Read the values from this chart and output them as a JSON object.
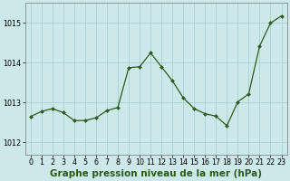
{
  "x": [
    0,
    1,
    2,
    3,
    4,
    5,
    6,
    7,
    8,
    9,
    10,
    11,
    12,
    13,
    14,
    15,
    16,
    17,
    18,
    19,
    20,
    21,
    22,
    23
  ],
  "y": [
    1012.65,
    1012.78,
    1012.85,
    1012.75,
    1012.55,
    1012.55,
    1012.62,
    1012.8,
    1012.88,
    1013.88,
    1013.9,
    1014.25,
    1013.9,
    1013.55,
    1013.12,
    1012.85,
    1012.72,
    1012.66,
    1012.42,
    1013.02,
    1013.22,
    1014.42,
    1015.0,
    1015.18
  ],
  "line_color": "#2d5a1b",
  "marker": "D",
  "marker_size": 2.0,
  "line_width": 0.9,
  "bg_color": "#cde8e8",
  "grid_color": "#b0d4d4",
  "axis_bg_color": "#cde8e8",
  "xlabel": "Graphe pression niveau de la mer (hPa)",
  "xlabel_fontsize": 7.5,
  "yticks": [
    1012,
    1013,
    1014,
    1015
  ],
  "xticks": [
    0,
    1,
    2,
    3,
    4,
    5,
    6,
    7,
    8,
    9,
    10,
    11,
    12,
    13,
    14,
    15,
    16,
    17,
    18,
    19,
    20,
    21,
    22,
    23
  ],
  "ylim": [
    1011.7,
    1015.5
  ],
  "xlim": [
    -0.5,
    23.5
  ],
  "tick_fontsize": 5.8,
  "border_color": "#888888"
}
